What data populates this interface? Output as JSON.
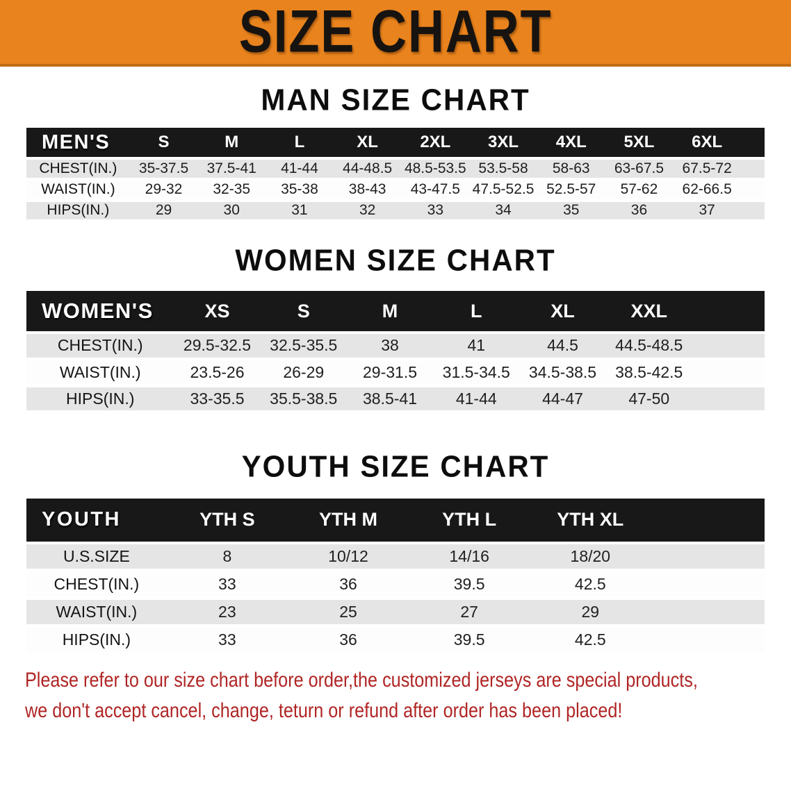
{
  "banner": {
    "title": "SIZE CHART"
  },
  "sections": [
    {
      "title": "MAN SIZE CHART",
      "header_label": "MEN'S",
      "columns": [
        "S",
        "M",
        "L",
        "XL",
        "2XL",
        "3XL",
        "4XL",
        "5XL",
        "6XL"
      ],
      "rows": [
        {
          "label": "CHEST(IN.)",
          "values": [
            "35-37.5",
            "37.5-41",
            "41-44",
            "44-48.5",
            "48.5-53.5",
            "53.5-58",
            "58-63",
            "63-67.5",
            "67.5-72"
          ]
        },
        {
          "label": "WAIST(IN.)",
          "values": [
            "29-32",
            "32-35",
            "35-38",
            "38-43",
            "43-47.5",
            "47.5-52.5",
            "52.5-57",
            "57-62",
            "62-66.5"
          ]
        },
        {
          "label": "HIPS(IN.)",
          "values": [
            "29",
            "30",
            "31",
            "32",
            "33",
            "34",
            "35",
            "36",
            "37"
          ]
        }
      ]
    },
    {
      "title": "WOMEN SIZE CHART",
      "header_label": "WOMEN'S",
      "columns": [
        "XS",
        "S",
        "M",
        "L",
        "XL",
        "XXL"
      ],
      "rows": [
        {
          "label": "CHEST(IN.)",
          "values": [
            "29.5-32.5",
            "32.5-35.5",
            "38",
            "41",
            "44.5",
            "44.5-48.5"
          ]
        },
        {
          "label": "WAIST(IN.)",
          "values": [
            "23.5-26",
            "26-29",
            "29-31.5",
            "31.5-34.5",
            "34.5-38.5",
            "38.5-42.5"
          ]
        },
        {
          "label": "HIPS(IN.)",
          "values": [
            "33-35.5",
            "35.5-38.5",
            "38.5-41",
            "41-44",
            "44-47",
            "47-50"
          ]
        }
      ]
    },
    {
      "title": "YOUTH SIZE CHART",
      "header_label": "YOUTH",
      "columns": [
        "YTH S",
        "YTH M",
        "YTH L",
        "YTH XL"
      ],
      "rows": [
        {
          "label": "U.S.SIZE",
          "values": [
            "8",
            "10/12",
            "14/16",
            "18/20"
          ]
        },
        {
          "label": "CHEST(IN.)",
          "values": [
            "33",
            "36",
            "39.5",
            "42.5"
          ]
        },
        {
          "label": "WAIST(IN.)",
          "values": [
            "23",
            "25",
            "27",
            "29"
          ]
        },
        {
          "label": "HIPS(IN.)",
          "values": [
            "33",
            "36",
            "39.5",
            "42.5"
          ]
        }
      ]
    }
  ],
  "disclaimer": {
    "lines": [
      "Please refer to our size chart before order,the customized jerseys are special products,",
      "we don't accept cancel, change, teturn or refund after order has been placed!"
    ]
  },
  "colors": {
    "banner_bg": "#E9831D",
    "banner_edge": "#C26C15",
    "banner_text": "#171310",
    "table_header_bg": "#181818",
    "row_gray": "#E5E5E5",
    "row_white": "#FDFDFD",
    "disclaimer_red": "#B02525"
  }
}
